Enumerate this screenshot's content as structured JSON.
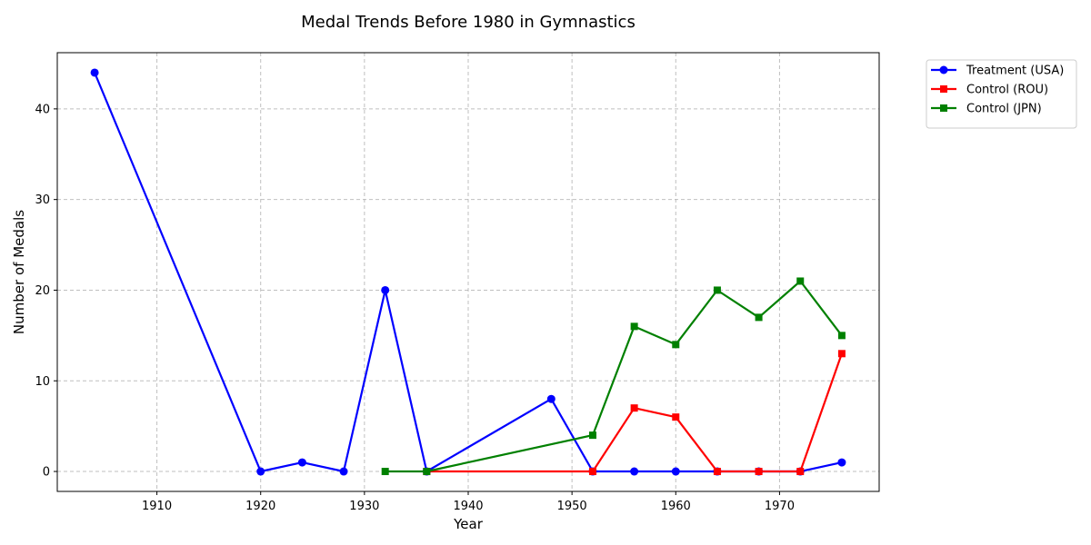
{
  "chart_data": {
    "type": "line",
    "title": "Medal Trends Before 1980 in Gymnastics",
    "xlabel": "Year",
    "ylabel": "Number of Medals",
    "xlim": [
      1900.4,
      1979.6
    ],
    "ylim": [
      -2.2,
      46.2
    ],
    "xticks": [
      1910,
      1920,
      1930,
      1940,
      1950,
      1960,
      1970
    ],
    "yticks": [
      0,
      10,
      20,
      30,
      40
    ],
    "grid": true,
    "legend_position": "outside-top-right",
    "series": [
      {
        "name": "Treatment (USA)",
        "color": "#0000ff",
        "marker": "circle",
        "x": [
          1904,
          1920,
          1924,
          1928,
          1932,
          1936,
          1948,
          1952,
          1956,
          1960,
          1964,
          1968,
          1972,
          1976
        ],
        "y": [
          44,
          0,
          1,
          0,
          20,
          0,
          8,
          0,
          0,
          0,
          0,
          0,
          0,
          1
        ]
      },
      {
        "name": "Control (ROU)",
        "color": "#ff0000",
        "marker": "square",
        "x": [
          1936,
          1952,
          1956,
          1960,
          1964,
          1968,
          1972,
          1976
        ],
        "y": [
          0,
          0,
          7,
          6,
          0,
          0,
          0,
          13
        ]
      },
      {
        "name": "Control (JPN)",
        "color": "#008000",
        "marker": "square",
        "x": [
          1932,
          1936,
          1952,
          1956,
          1960,
          1964,
          1968,
          1972,
          1976
        ],
        "y": [
          0,
          0,
          4,
          16,
          14,
          20,
          17,
          21,
          15
        ]
      }
    ]
  }
}
